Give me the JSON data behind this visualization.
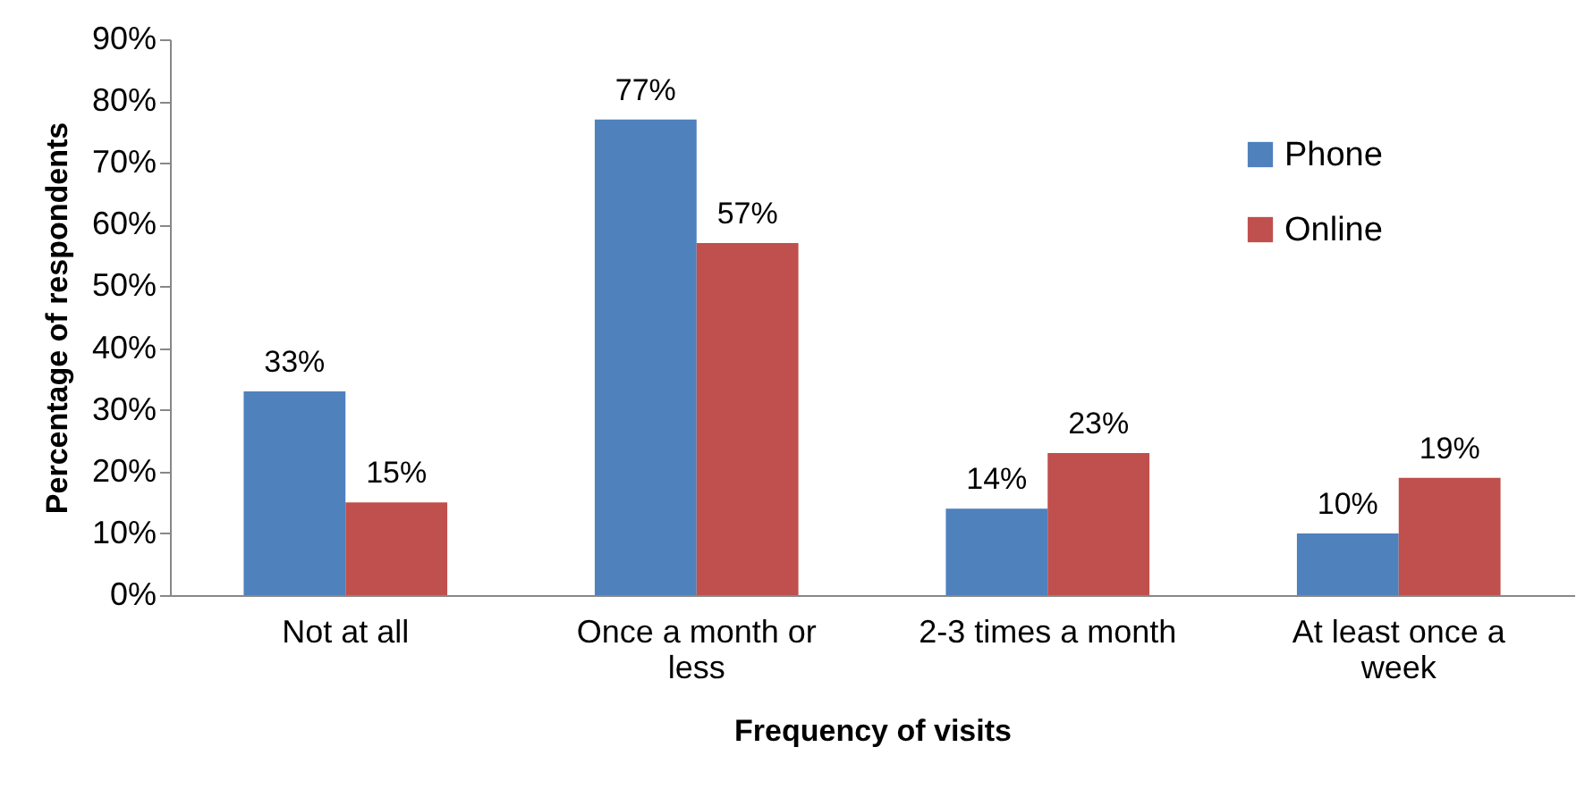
{
  "chart_data": {
    "type": "bar",
    "xlabel": "Frequency of visits",
    "ylabel": "Percentage of respondents",
    "categories": [
      "Not at all",
      "Once a month or less",
      "2-3 times a month",
      "At least once a week"
    ],
    "series": [
      {
        "name": "Phone",
        "color": "#4f81bd",
        "values": [
          33,
          77,
          14,
          10
        ],
        "value_labels": [
          "33%",
          "77%",
          "14%",
          "10%"
        ]
      },
      {
        "name": "Online",
        "color": "#c0504d",
        "values": [
          15,
          57,
          23,
          19
        ],
        "value_labels": [
          "15%",
          "57%",
          "23%",
          "19%"
        ]
      }
    ],
    "ylim": [
      0,
      90
    ],
    "yticks": [
      {
        "value": 0,
        "label": "0%"
      },
      {
        "value": 10,
        "label": "10%"
      },
      {
        "value": 20,
        "label": "20%"
      },
      {
        "value": 30,
        "label": "30%"
      },
      {
        "value": 40,
        "label": "40%"
      },
      {
        "value": 50,
        "label": "50%"
      },
      {
        "value": 60,
        "label": "60%"
      },
      {
        "value": 70,
        "label": "70%"
      },
      {
        "value": 80,
        "label": "80%"
      },
      {
        "value": 90,
        "label": "90%"
      }
    ],
    "grid": false,
    "legend": "top right"
  }
}
